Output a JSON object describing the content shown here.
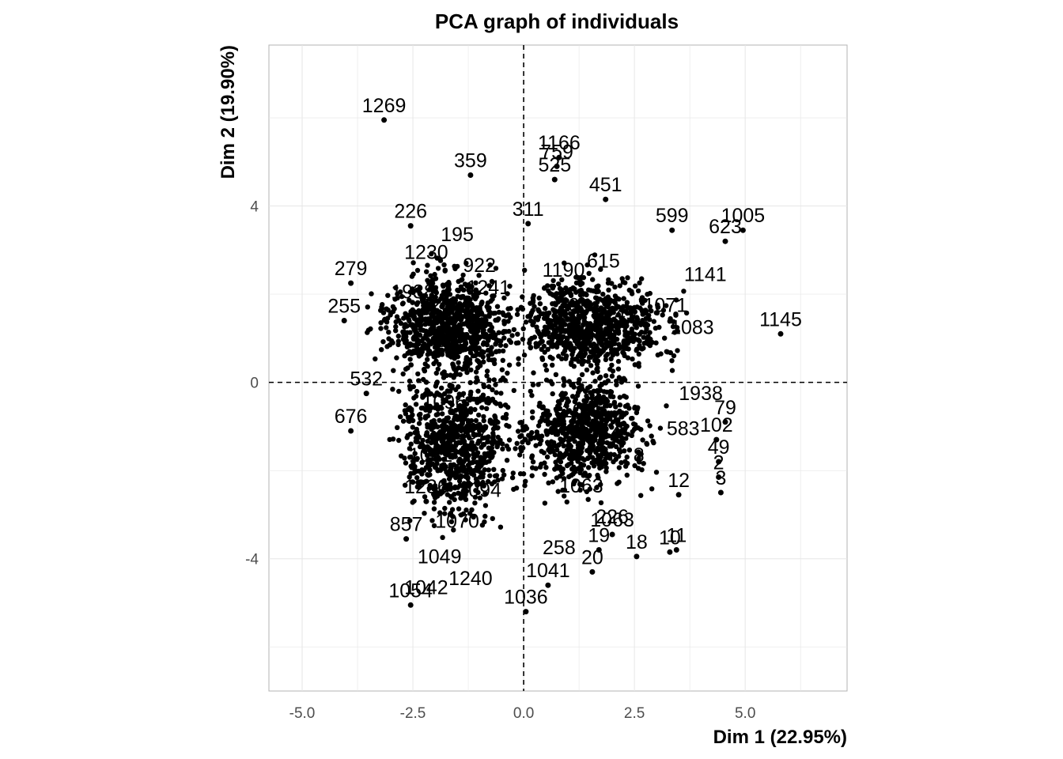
{
  "chart_data": {
    "type": "scatter",
    "title": "PCA graph of individuals",
    "xlabel": "Dim 1 (22.95%)",
    "ylabel": "Dim 2 (19.90%)",
    "xlim": [
      -5.75,
      7.3
    ],
    "ylim": [
      -7.0,
      7.65
    ],
    "xticks": [
      -5.0,
      -2.5,
      0.0,
      2.5,
      5.0
    ],
    "xtick_labels": [
      "-5.0",
      "-2.5",
      "0.0",
      "2.5",
      "5.0"
    ],
    "yticks": [
      -4,
      0,
      4
    ],
    "ytick_labels": [
      "-4",
      "0",
      "4"
    ],
    "grid": true,
    "reference_lines": {
      "x": 0,
      "y": 0,
      "style": "dashed"
    },
    "cluster_hint": "Dense overlapping cloud of points in four lobes around the origin; only legible labels are listed.",
    "labeled_points": [
      {
        "label": "1269",
        "x": -3.15,
        "y": 5.95
      },
      {
        "label": "359",
        "x": -1.2,
        "y": 4.7
      },
      {
        "label": "1166",
        "x": 0.8,
        "y": 5.1
      },
      {
        "label": "759",
        "x": 0.75,
        "y": 4.9
      },
      {
        "label": "525",
        "x": 0.7,
        "y": 4.6
      },
      {
        "label": "451",
        "x": 1.85,
        "y": 4.15
      },
      {
        "label": "311",
        "x": 0.1,
        "y": 3.6
      },
      {
        "label": "226",
        "x": -2.55,
        "y": 3.55
      },
      {
        "label": "599",
        "x": 3.35,
        "y": 3.45
      },
      {
        "label": "1005",
        "x": 4.95,
        "y": 3.45
      },
      {
        "label": "623",
        "x": 4.55,
        "y": 3.2
      },
      {
        "label": "279",
        "x": -3.9,
        "y": 2.25
      },
      {
        "label": "255",
        "x": -4.05,
        "y": 1.4
      },
      {
        "label": "1145",
        "x": 5.8,
        "y": 1.1
      },
      {
        "label": "532",
        "x": -3.55,
        "y": -0.25
      },
      {
        "label": "676",
        "x": -3.9,
        "y": -1.1
      },
      {
        "label": "857",
        "x": -2.65,
        "y": -3.55
      },
      {
        "label": "1236",
        "x": -2.2,
        "y": -2.7
      },
      {
        "label": "12",
        "x": 3.5,
        "y": -2.55
      },
      {
        "label": "3",
        "x": 4.45,
        "y": -2.5
      },
      {
        "label": "2",
        "x": 4.4,
        "y": -2.15
      },
      {
        "label": "49",
        "x": 4.4,
        "y": -1.8
      },
      {
        "label": "102",
        "x": 4.35,
        "y": -1.3
      },
      {
        "label": "79",
        "x": 4.55,
        "y": -0.9
      },
      {
        "label": "11",
        "x": 3.45,
        "y": -3.8
      },
      {
        "label": "10",
        "x": 3.3,
        "y": -3.85
      },
      {
        "label": "18",
        "x": 2.55,
        "y": -3.95
      },
      {
        "label": "19",
        "x": 1.7,
        "y": -3.8
      },
      {
        "label": "20",
        "x": 1.55,
        "y": -4.3
      },
      {
        "label": "1063",
        "x": 2.0,
        "y": -3.45
      },
      {
        "label": "1041",
        "x": 0.55,
        "y": -4.6
      },
      {
        "label": "1036",
        "x": 0.05,
        "y": -5.2
      },
      {
        "label": "1054",
        "x": -2.55,
        "y": -5.05
      }
    ],
    "cloud_labels": [
      "226",
      "258",
      "583",
      "1938",
      "922",
      "1230",
      "195",
      "1241",
      "16",
      "1001",
      "49",
      "1190",
      "615",
      "1071",
      "1083",
      "1141",
      "1096",
      "1057",
      "1082",
      "1094",
      "1070",
      "1049",
      "1240",
      "1042",
      "10",
      "1084",
      "8",
      "1063"
    ]
  }
}
